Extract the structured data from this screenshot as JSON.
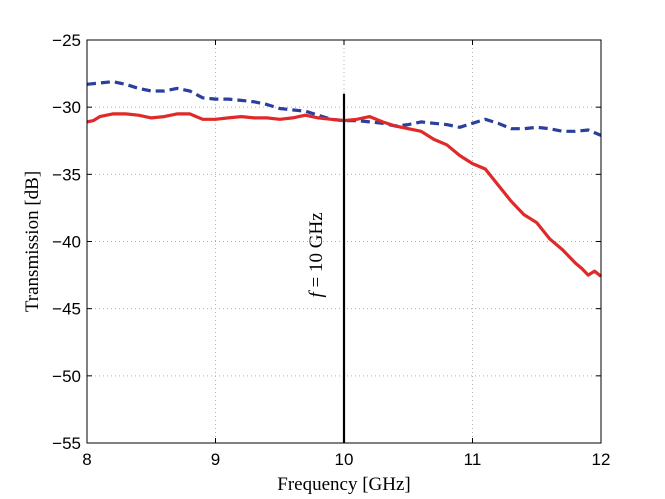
{
  "chart_data": {
    "type": "line",
    "title": "",
    "xlabel": "Frequency [GHz]",
    "ylabel": "Transmission [dB]",
    "xlim": [
      8,
      12
    ],
    "ylim": [
      -55,
      -25
    ],
    "xticks": [
      8,
      9,
      10,
      11,
      12
    ],
    "yticks": [
      -25,
      -30,
      -35,
      -40,
      -45,
      -50,
      -55
    ],
    "xtick_labels": [
      "8",
      "9",
      "10",
      "11",
      "12"
    ],
    "ytick_labels": [
      "−25",
      "−30",
      "−35",
      "−40",
      "−45",
      "−50",
      "−55"
    ],
    "grid": true,
    "series": [
      {
        "name": "blue-dashed",
        "color": "#2b3f9e",
        "style": "dashed",
        "x": [
          8.0,
          8.1,
          8.2,
          8.3,
          8.4,
          8.5,
          8.6,
          8.7,
          8.8,
          8.9,
          9.0,
          9.1,
          9.2,
          9.3,
          9.4,
          9.5,
          9.6,
          9.7,
          9.8,
          9.9,
          10.0,
          10.1,
          10.2,
          10.3,
          10.4,
          10.5,
          10.6,
          10.7,
          10.8,
          10.9,
          11.0,
          11.1,
          11.2,
          11.3,
          11.4,
          11.5,
          11.6,
          11.7,
          11.8,
          11.9,
          12.0
        ],
        "y": [
          -28.3,
          -28.2,
          -28.1,
          -28.3,
          -28.6,
          -28.8,
          -28.8,
          -28.6,
          -28.8,
          -29.3,
          -29.4,
          -29.4,
          -29.5,
          -29.6,
          -29.8,
          -30.1,
          -30.2,
          -30.3,
          -30.6,
          -30.9,
          -31.0,
          -31.0,
          -31.1,
          -31.2,
          -31.4,
          -31.3,
          -31.1,
          -31.2,
          -31.3,
          -31.5,
          -31.2,
          -30.9,
          -31.2,
          -31.6,
          -31.6,
          -31.5,
          -31.6,
          -31.8,
          -31.8,
          -31.7,
          -32.1
        ]
      },
      {
        "name": "red-solid",
        "color": "#e02a2a",
        "style": "solid",
        "x": [
          8.0,
          8.05,
          8.1,
          8.2,
          8.3,
          8.4,
          8.5,
          8.6,
          8.7,
          8.8,
          8.9,
          9.0,
          9.1,
          9.2,
          9.3,
          9.4,
          9.5,
          9.6,
          9.7,
          9.8,
          9.9,
          10.0,
          10.1,
          10.2,
          10.3,
          10.4,
          10.5,
          10.6,
          10.7,
          10.8,
          10.9,
          11.0,
          11.1,
          11.2,
          11.3,
          11.4,
          11.5,
          11.6,
          11.7,
          11.8,
          11.85,
          11.9,
          11.95,
          12.0
        ],
        "y": [
          -31.1,
          -31.0,
          -30.7,
          -30.5,
          -30.5,
          -30.6,
          -30.8,
          -30.7,
          -30.5,
          -30.5,
          -30.9,
          -30.9,
          -30.8,
          -30.7,
          -30.8,
          -30.8,
          -30.9,
          -30.8,
          -30.6,
          -30.8,
          -30.9,
          -31.0,
          -30.9,
          -30.7,
          -31.1,
          -31.4,
          -31.6,
          -31.8,
          -32.4,
          -32.8,
          -33.6,
          -34.2,
          -34.6,
          -35.8,
          -37.0,
          -38.0,
          -38.6,
          -39.8,
          -40.6,
          -41.6,
          -42.0,
          -42.5,
          -42.2,
          -42.6
        ]
      }
    ],
    "annotations": [
      {
        "type": "vline",
        "x": 10,
        "y_top": -29,
        "y_bottom": -55,
        "color": "#000000"
      }
    ]
  },
  "annotation_text": {
    "f_symbol": "f",
    "rest": " = 10 GHz"
  }
}
